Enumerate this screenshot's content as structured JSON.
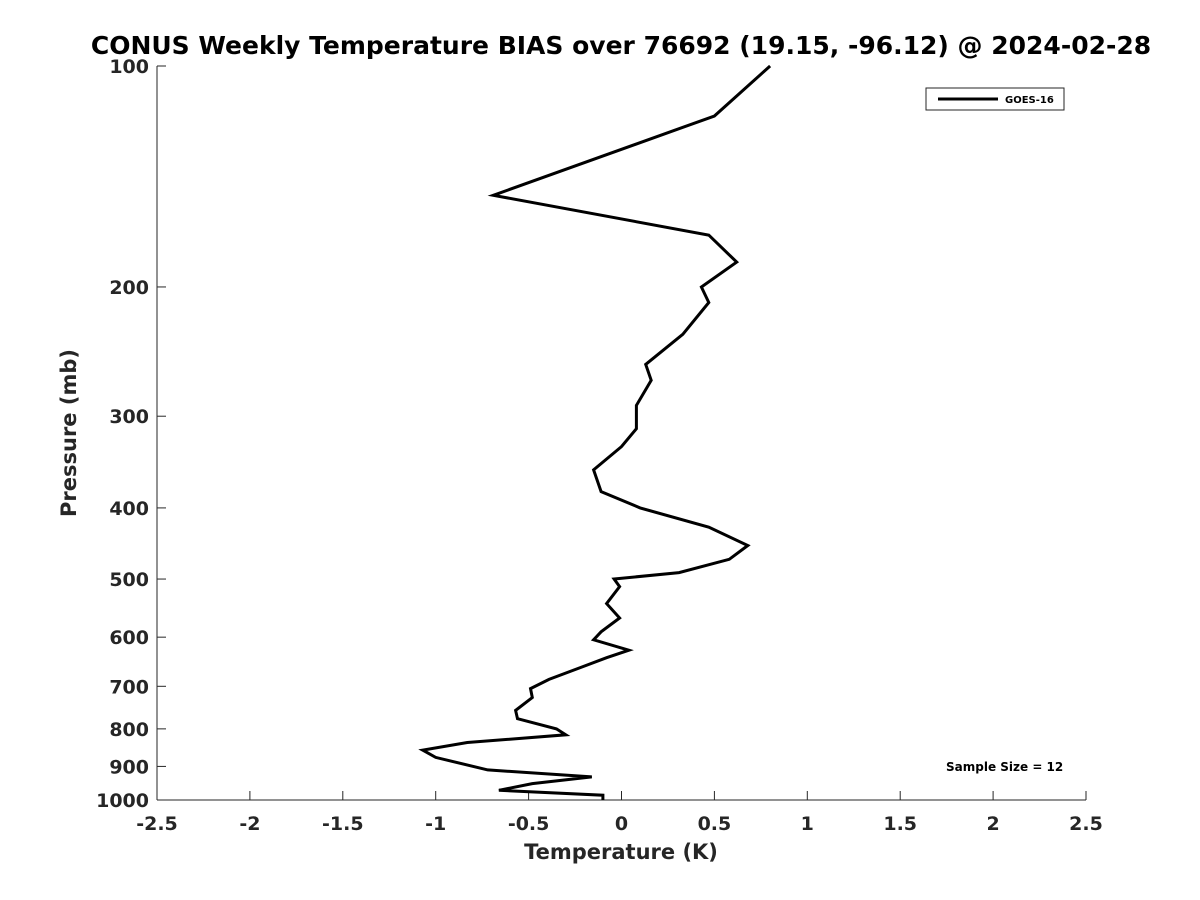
{
  "chart_data": {
    "type": "line",
    "title": "CONUS Weekly Temperature BIAS over 76692 (19.15, -96.12) @ 2024-02-28",
    "xlabel": "Temperature (K)",
    "ylabel": "Pressure (mb)",
    "xlim": [
      -2.5,
      2.5
    ],
    "ylim": [
      100,
      1000
    ],
    "y_scale": "log",
    "y_reversed": true,
    "x_ticks": [
      -2.5,
      -2,
      -1.5,
      -1,
      -0.5,
      0,
      0.5,
      1,
      1.5,
      2,
      2.5
    ],
    "x_tick_labels": [
      "-2.5",
      "-2",
      "-1.5",
      "-1",
      "-0.5",
      "0",
      "0.5",
      "1",
      "1.5",
      "2",
      "2.5"
    ],
    "y_ticks": [
      100,
      200,
      300,
      400,
      500,
      600,
      700,
      800,
      900,
      1000
    ],
    "y_tick_labels": [
      "100",
      "200",
      "300",
      "400",
      "500",
      "600",
      "700",
      "800",
      "900",
      "1000"
    ],
    "grid": false,
    "legend": {
      "position": "top-right",
      "entries": [
        "GOES-16"
      ]
    },
    "annotations": [
      {
        "text": "Sample Size = 12",
        "position": "bottom-right"
      }
    ],
    "line_color": "#000000",
    "series": [
      {
        "name": "GOES-16",
        "x": [
          0.8,
          0.5,
          -0.69,
          0.47,
          0.62,
          0.43,
          0.47,
          0.33,
          0.13,
          0.16,
          0.08,
          0.08,
          0.0,
          -0.15,
          -0.11,
          0.1,
          0.47,
          0.68,
          0.58,
          0.31,
          -0.04,
          -0.01,
          -0.08,
          -0.01,
          -0.11,
          -0.15,
          0.04,
          -0.08,
          -0.22,
          -0.39,
          -0.49,
          -0.48,
          -0.57,
          -0.56,
          -0.35,
          -0.3,
          -0.83,
          -1.07,
          -1.0,
          -0.72,
          -0.16,
          -0.48,
          -0.66,
          -0.1,
          -0.1
        ],
        "y": [
          100,
          117,
          150,
          170,
          185,
          200,
          210,
          232,
          255,
          268,
          290,
          312,
          330,
          355,
          380,
          400,
          425,
          450,
          470,
          490,
          500,
          512,
          540,
          565,
          590,
          605,
          625,
          640,
          660,
          685,
          705,
          725,
          755,
          775,
          800,
          815,
          835,
          855,
          875,
          910,
          930,
          950,
          970,
          985,
          1000
        ]
      }
    ]
  }
}
